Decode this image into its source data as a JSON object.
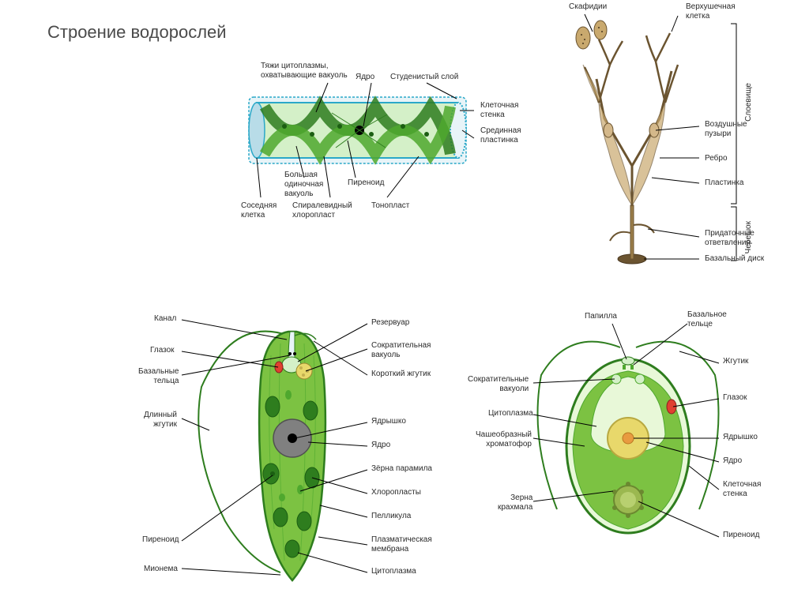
{
  "title": "Строение водорослей",
  "colors": {
    "green_light": "#7CC242",
    "green_mid": "#4FA82E",
    "green_dark": "#2E7D1E",
    "brown_light": "#C9A96E",
    "brown_mid": "#9B7E4A",
    "brown_dark": "#6B5430",
    "yellow": "#E8D86B",
    "orange": "#E89B40",
    "red": "#E04030",
    "gray": "#808080",
    "black": "#000000",
    "blue_light": "#B8DCE8",
    "leader": "#000000",
    "cell_wall": "#2AA8C8"
  },
  "spirogyra": {
    "labels": {
      "top1": "Тяжи цитоплазмы,\nохватывающие вакуоль",
      "top2": "Ядро",
      "top3": "Студенистый слой",
      "r1": "Клеточная\nстенка",
      "r2": "Срединная\nпластинка",
      "b1": "Соседняя\nклетка",
      "b2": "Спиралевидный\nхлоропласт",
      "b3": "Тонопласт",
      "b4": "Большая\nодиночная\nвакуоль",
      "b5": "Пиреноид"
    }
  },
  "fucus": {
    "labels": {
      "t1": "Скафидии",
      "t2": "Верхушечная\nклетка",
      "r1": "Воздушные\nпузыри",
      "r2": "Ребро",
      "r3": "Пластинка",
      "r4": "Придаточные\nответвления",
      "r5": "Базальный диск",
      "br1": "Слоевище",
      "br2": "Черешок"
    }
  },
  "euglena": {
    "labels": {
      "l1": "Канал",
      "l2": "Глазок",
      "l3": "Базальные\nтельца",
      "l4": "Длинный\nжгутик",
      "l5": "Пиреноид",
      "l6": "Мионема",
      "r1": "Резервуар",
      "r2": "Сократительная\nвакуоль",
      "r3": "Короткий жгутик",
      "r4": "Ядрышко",
      "r5": "Ядро",
      "r6": "Зёрна парамила",
      "r7": "Хлоропласты",
      "r8": "Пелликула",
      "r9": "Плазматическая\nмембрана",
      "r10": "Цитоплазма"
    }
  },
  "chlamydomonas": {
    "labels": {
      "t1": "Папилла",
      "t2": "Базальное\nтельце",
      "l1": "Сократительные\nвакуоли",
      "l2": "Цитоплазма",
      "l3": "Чашеобразный\nхроматофор",
      "l4": "Зерна\nкрахмала",
      "r1": "Жгутик",
      "r2": "Глазок",
      "r3": "Ядрышко",
      "r4": "Ядро",
      "r5": "Клеточная\nстенка",
      "r6": "Пиреноид"
    }
  }
}
